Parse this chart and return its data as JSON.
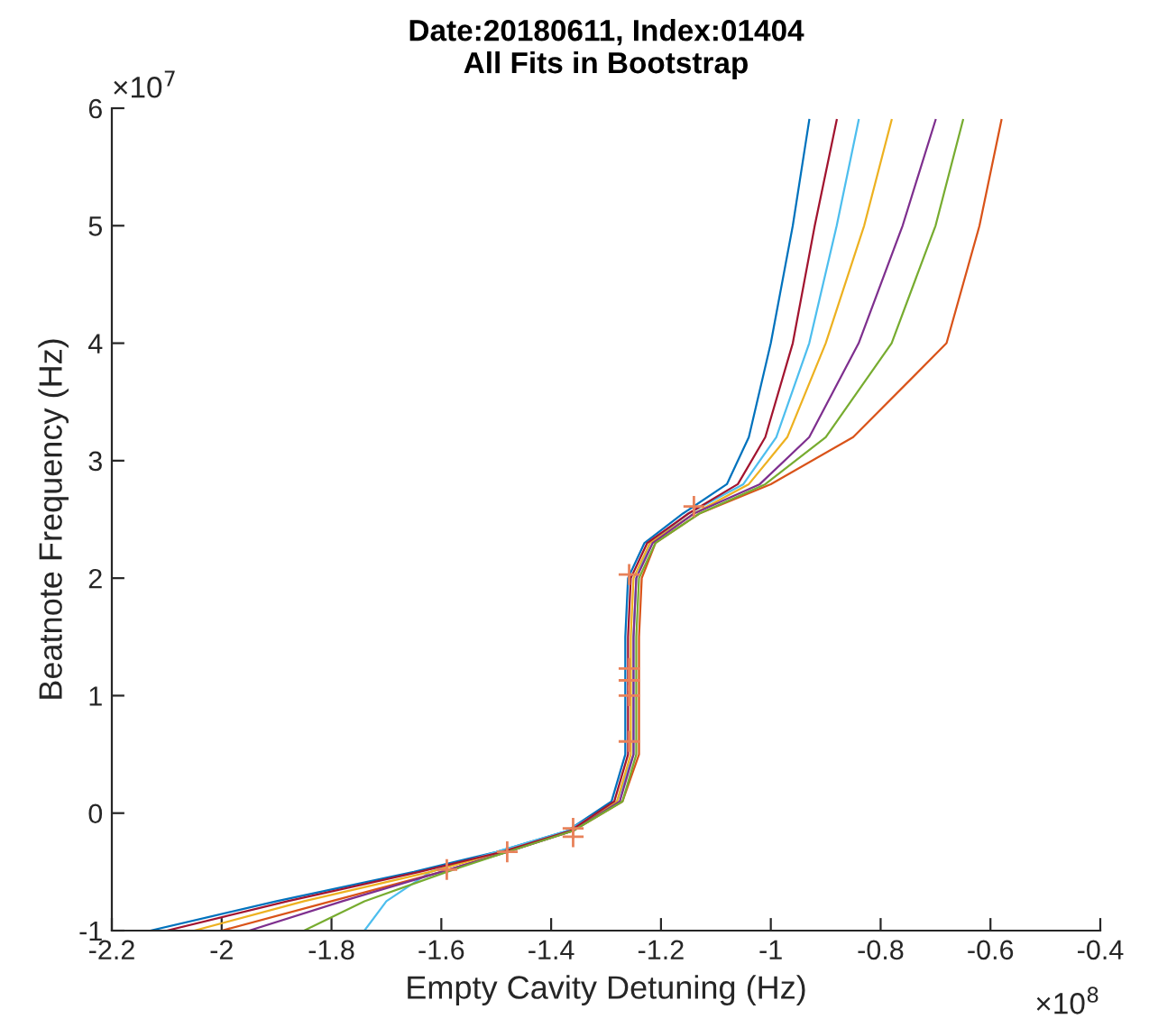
{
  "chart_data": {
    "type": "line",
    "title": "Date:20180611, Index:01404\nAll Fits in Bootstrap",
    "xlabel": "Empty Cavity Detuning (Hz)",
    "ylabel": "Beatnote Frequency (Hz)",
    "xlim": [
      -2.2,
      -0.4
    ],
    "ylim": [
      -1,
      6
    ],
    "xticks": [
      -2.2,
      -2,
      -1.8,
      -1.6,
      -1.4,
      -1.2,
      -1,
      -0.8,
      -0.6,
      -0.4
    ],
    "yticks": [
      -1,
      0,
      1,
      2,
      3,
      4,
      5,
      6
    ],
    "annotations": [
      "×10$^{8}$",
      "×10$^{7}$"
    ],
    "grid": false,
    "legend": false,
    "line_style": "solid",
    "marker": "none",
    "series": [
      {
        "color": "#0072bd",
        "x": [
          -2.13,
          -1.9,
          -1.65,
          -1.5,
          -1.37,
          -1.29,
          -1.265,
          -1.265,
          -1.265,
          -1.26,
          -1.23,
          -1.16,
          -1.08,
          -1.04,
          -1.0,
          -0.96,
          -0.93
        ],
        "values": [
          -1.0,
          -0.75,
          -0.5,
          -0.33,
          -0.15,
          0.1,
          0.5,
          1.0,
          1.5,
          2.0,
          2.3,
          2.55,
          2.8,
          3.2,
          4.0,
          5.0,
          5.9
        ]
      },
      {
        "color": "#4dbeee",
        "x": [
          -1.74,
          -1.7,
          -1.62,
          -1.5,
          -1.37,
          -1.28,
          -1.25,
          -1.25,
          -1.25,
          -1.245,
          -1.22,
          -1.15,
          -1.05,
          -0.99,
          -0.93,
          -0.88,
          -0.84
        ],
        "values": [
          -1.0,
          -0.75,
          -0.5,
          -0.33,
          -0.15,
          0.1,
          0.5,
          1.0,
          1.5,
          2.0,
          2.3,
          2.55,
          2.8,
          3.2,
          4.0,
          5.0,
          5.9
        ]
      },
      {
        "color": "#d95319",
        "x": [
          -2.0,
          -1.8,
          -1.6,
          -1.48,
          -1.36,
          -1.27,
          -1.24,
          -1.24,
          -1.24,
          -1.235,
          -1.21,
          -1.13,
          -1.0,
          -0.85,
          -0.68,
          -0.62,
          -0.58
        ],
        "values": [
          -1.0,
          -0.75,
          -0.5,
          -0.33,
          -0.15,
          0.1,
          0.5,
          1.0,
          1.5,
          2.0,
          2.3,
          2.55,
          2.8,
          3.2,
          4.0,
          5.0,
          5.9
        ]
      },
      {
        "color": "#edb120",
        "x": [
          -2.05,
          -1.85,
          -1.62,
          -1.49,
          -1.36,
          -1.28,
          -1.255,
          -1.255,
          -1.255,
          -1.25,
          -1.22,
          -1.14,
          -1.04,
          -0.97,
          -0.9,
          -0.83,
          -0.78
        ],
        "values": [
          -1.0,
          -0.75,
          -0.5,
          -0.33,
          -0.15,
          0.1,
          0.5,
          1.0,
          1.5,
          2.0,
          2.3,
          2.55,
          2.8,
          3.2,
          4.0,
          5.0,
          5.9
        ]
      },
      {
        "color": "#7e2f8e",
        "x": [
          -1.95,
          -1.78,
          -1.6,
          -1.48,
          -1.36,
          -1.275,
          -1.25,
          -1.25,
          -1.25,
          -1.245,
          -1.215,
          -1.14,
          -1.02,
          -0.93,
          -0.84,
          -0.76,
          -0.7
        ],
        "values": [
          -1.0,
          -0.75,
          -0.5,
          -0.33,
          -0.15,
          0.1,
          0.5,
          1.0,
          1.5,
          2.0,
          2.3,
          2.55,
          2.8,
          3.2,
          4.0,
          5.0,
          5.9
        ]
      },
      {
        "color": "#a2142f",
        "x": [
          -2.1,
          -1.88,
          -1.64,
          -1.49,
          -1.365,
          -1.285,
          -1.26,
          -1.26,
          -1.26,
          -1.255,
          -1.225,
          -1.15,
          -1.06,
          -1.01,
          -0.96,
          -0.92,
          -0.88
        ],
        "values": [
          -1.0,
          -0.75,
          -0.5,
          -0.33,
          -0.15,
          0.1,
          0.5,
          1.0,
          1.5,
          2.0,
          2.3,
          2.55,
          2.8,
          3.2,
          4.0,
          5.0,
          5.9
        ]
      },
      {
        "color": "#77ac30",
        "x": [
          -1.85,
          -1.74,
          -1.59,
          -1.48,
          -1.36,
          -1.27,
          -1.245,
          -1.245,
          -1.245,
          -1.24,
          -1.21,
          -1.13,
          -1.01,
          -0.9,
          -0.78,
          -0.7,
          -0.65
        ],
        "values": [
          -1.0,
          -0.75,
          -0.5,
          -0.33,
          -0.15,
          0.1,
          0.5,
          1.0,
          1.5,
          2.0,
          2.3,
          2.55,
          2.8,
          3.2,
          4.0,
          5.0,
          5.9
        ]
      },
      {
        "type": "scatter",
        "marker": "cross",
        "color": "#e8825a",
        "x": [
          -1.59,
          -1.48,
          -1.36,
          -1.36,
          -1.258,
          -1.258,
          -1.258,
          -1.258,
          -1.258,
          -1.14
        ],
        "values": [
          -0.48,
          -0.33,
          -0.13,
          -0.2,
          0.61,
          1.0,
          1.13,
          1.23,
          2.03,
          2.61
        ]
      }
    ]
  }
}
